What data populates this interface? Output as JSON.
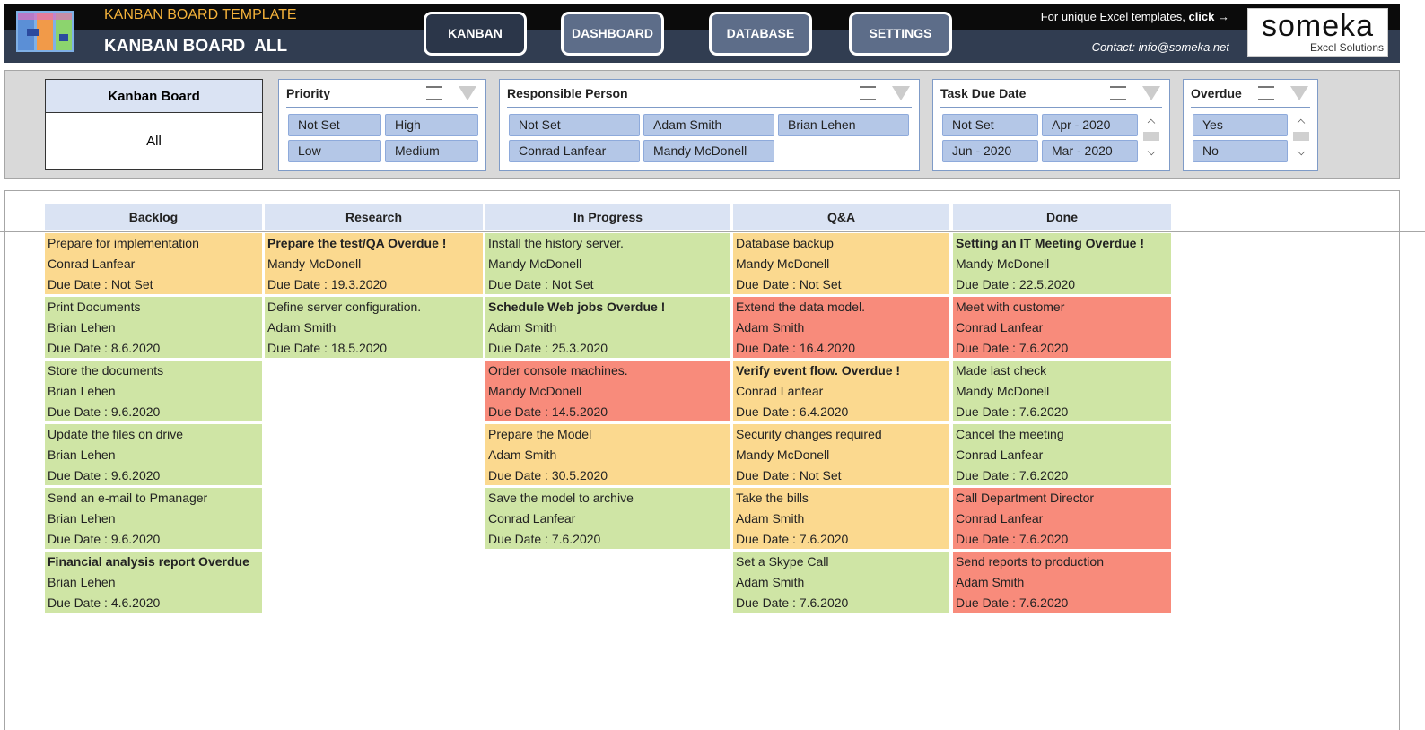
{
  "header": {
    "title": "KANBAN BOARD TEMPLATE",
    "subtitle": "KANBAN BOARD  ALL",
    "nav": [
      "KANBAN",
      "DASHBOARD",
      "DATABASE",
      "SETTINGS"
    ],
    "promo_text": "For unique Excel templates,",
    "promo_link": "click →",
    "contact": "Contact: info@someka.net",
    "logo": {
      "name": "someka",
      "tagline": "Excel Solutions"
    }
  },
  "filters": {
    "board": {
      "title": "Kanban Board",
      "value": "All"
    },
    "slicers": [
      {
        "title": "Priority",
        "items": [
          "Not Set",
          "High",
          "Low",
          "Medium"
        ]
      },
      {
        "title": "Responsible Person",
        "items": [
          "Not Set",
          "Adam Smith",
          "Brian Lehen",
          "Conrad Lanfear",
          "Mandy McDonell"
        ]
      },
      {
        "title": "Task Due Date",
        "items": [
          "Not Set",
          "Apr - 2020",
          "Jun - 2020",
          "Mar - 2020"
        ]
      },
      {
        "title": "Overdue",
        "items": [
          "Yes",
          "No"
        ]
      }
    ]
  },
  "board": {
    "columns": [
      {
        "name": "Backlog",
        "cards": [
          {
            "lines": [
              "Prepare for implementation",
              "Conrad Lanfear",
              "Due Date : Not Set"
            ],
            "color": "#fbd98f",
            "bold": false
          },
          {
            "lines": [
              "Print Documents",
              "Brian Lehen",
              "Due Date : 8.6.2020"
            ],
            "color": "#cfe5a5",
            "bold": false
          },
          {
            "lines": [
              "Store the documents",
              "Brian Lehen",
              "Due Date : 9.6.2020"
            ],
            "color": "#cfe5a5",
            "bold": false
          },
          {
            "lines": [
              "Update the files on drive",
              "Brian Lehen",
              "Due Date : 9.6.2020"
            ],
            "color": "#cfe5a5",
            "bold": false
          },
          {
            "lines": [
              "Send an e-mail to Pmanager",
              "Brian Lehen",
              "Due Date : 9.6.2020"
            ],
            "color": "#cfe5a5",
            "bold": false
          },
          {
            "lines": [
              "Financial analysis report Overdue",
              "Brian Lehen",
              "Due Date : 4.6.2020"
            ],
            "color": "#cfe5a5",
            "bold": true
          }
        ]
      },
      {
        "name": "Research",
        "cards": [
          {
            "lines": [
              "Prepare the test/QA Overdue !",
              "Mandy McDonell",
              "Due Date : 19.3.2020"
            ],
            "color": "#fbd98f",
            "bold": true
          },
          {
            "lines": [
              "Define server configuration.",
              "Adam Smith",
              "Due Date : 18.5.2020"
            ],
            "color": "#cfe5a5",
            "bold": false
          }
        ]
      },
      {
        "name": "In Progress",
        "cards": [
          {
            "lines": [
              "Install the history server.",
              "Mandy McDonell",
              "Due Date : Not Set"
            ],
            "color": "#cfe5a5",
            "bold": false
          },
          {
            "lines": [
              "Schedule Web jobs Overdue !",
              "Adam Smith",
              "Due Date : 25.3.2020"
            ],
            "color": "#cfe5a5",
            "bold": true
          },
          {
            "lines": [
              "Order console machines.",
              "Mandy McDonell",
              "Due Date : 14.5.2020"
            ],
            "color": "#f88b7b",
            "bold": false
          },
          {
            "lines": [
              "Prepare the Model",
              "Adam Smith",
              "Due Date : 30.5.2020"
            ],
            "color": "#fbd98f",
            "bold": false
          },
          {
            "lines": [
              "Save the model to archive",
              "Conrad Lanfear",
              "Due Date : 7.6.2020"
            ],
            "color": "#cfe5a5",
            "bold": false
          }
        ]
      },
      {
        "name": "Q&A",
        "cards": [
          {
            "lines": [
              "Database backup",
              "Mandy McDonell",
              "Due Date : Not Set"
            ],
            "color": "#fbd98f",
            "bold": false
          },
          {
            "lines": [
              "Extend the data model.",
              "Adam Smith",
              "Due Date : 16.4.2020"
            ],
            "color": "#f88b7b",
            "bold": false
          },
          {
            "lines": [
              "Verify event flow. Overdue !",
              "Conrad Lanfear",
              "Due Date : 6.4.2020"
            ],
            "color": "#fbd98f",
            "bold": true
          },
          {
            "lines": [
              "Security changes required",
              "Mandy McDonell",
              "Due Date : Not Set"
            ],
            "color": "#fbd98f",
            "bold": false
          },
          {
            "lines": [
              "Take the bills",
              "Adam Smith",
              "Due Date : 7.6.2020"
            ],
            "color": "#fbd98f",
            "bold": false
          },
          {
            "lines": [
              "Set a Skype Call",
              "Adam Smith",
              "Due Date : 7.6.2020"
            ],
            "color": "#cfe5a5",
            "bold": false
          }
        ]
      },
      {
        "name": "Done",
        "cards": [
          {
            "lines": [
              "Setting an IT Meeting Overdue !",
              "Mandy McDonell",
              "Due Date : 22.5.2020"
            ],
            "color": "#cfe5a5",
            "bold": true
          },
          {
            "lines": [
              "Meet with customer",
              "Conrad Lanfear",
              "Due Date : 7.6.2020"
            ],
            "color": "#f88b7b",
            "bold": false
          },
          {
            "lines": [
              "Made last check",
              "Mandy McDonell",
              "Due Date : 7.6.2020"
            ],
            "color": "#cfe5a5",
            "bold": false
          },
          {
            "lines": [
              "Cancel the meeting",
              "Conrad Lanfear",
              "Due Date : 7.6.2020"
            ],
            "color": "#cfe5a5",
            "bold": false
          },
          {
            "lines": [
              "Call Department Director",
              "Conrad Lanfear",
              "Due Date : 7.6.2020"
            ],
            "color": "#f88b7b",
            "bold": false
          },
          {
            "lines": [
              "Send reports to production",
              "Adam Smith",
              "Due Date : 7.6.2020"
            ],
            "color": "#f88b7b",
            "bold": false
          }
        ]
      }
    ]
  }
}
